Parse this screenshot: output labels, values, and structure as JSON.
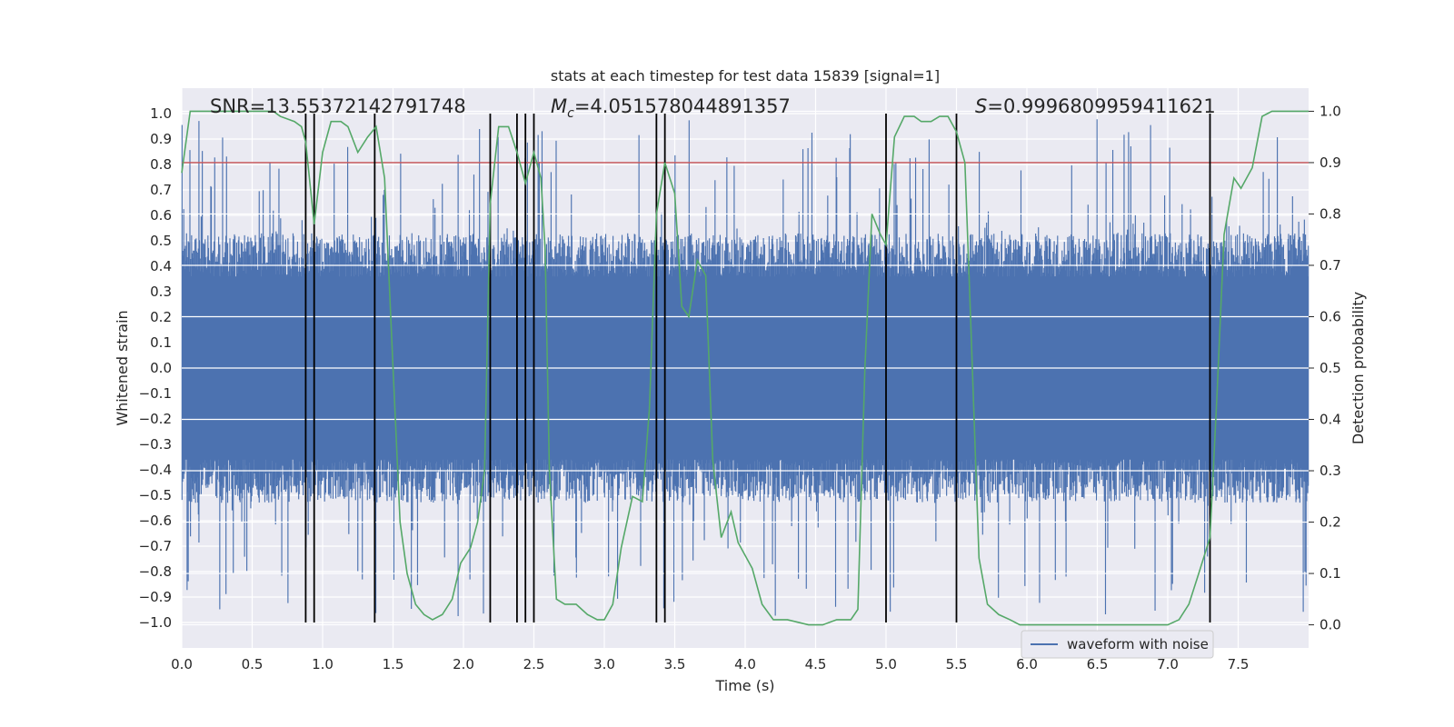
{
  "chart_data": {
    "type": "line",
    "title": "stats at each timestep for test data 15839 [signal=1]",
    "xlabel": "Time (s)",
    "ylabel": "Whitened strain",
    "y2label": "Detection probability",
    "xlim": [
      0,
      8
    ],
    "ylim": [
      -1.1,
      1.1
    ],
    "y2lim": [
      -0.045,
      1.045
    ],
    "xticks": [
      0.0,
      0.5,
      1.0,
      1.5,
      2.0,
      2.5,
      3.0,
      3.5,
      4.0,
      4.5,
      5.0,
      5.5,
      6.0,
      6.5,
      7.0,
      7.5
    ],
    "xtick_labels": [
      "0.0",
      "0.5",
      "1.0",
      "1.5",
      "2.0",
      "2.5",
      "3.0",
      "3.5",
      "4.0",
      "4.5",
      "5.0",
      "5.5",
      "6.0",
      "6.5",
      "7.0",
      "7.5"
    ],
    "yticks": [
      1.0,
      0.9,
      0.8,
      0.7,
      0.6,
      0.5,
      0.4,
      0.3,
      0.2,
      0.1,
      0.0,
      -0.1,
      -0.2,
      -0.3,
      -0.4,
      -0.5,
      -0.6,
      -0.7,
      -0.8,
      -0.9,
      -1.0
    ],
    "ytick_labels": [
      "1.0",
      "0.9",
      "0.8",
      "0.7",
      "0.6",
      "0.5",
      "0.4",
      "0.3",
      "0.2",
      "0.1",
      "0.0",
      "−0.1",
      "−0.2",
      "−0.3",
      "−0.4",
      "−0.5",
      "−0.6",
      "−0.7",
      "−0.8",
      "−0.9",
      "−1.0"
    ],
    "y2ticks": [
      1.0,
      0.9,
      0.8,
      0.7,
      0.6,
      0.5,
      0.4,
      0.3,
      0.2,
      0.1,
      0.0
    ],
    "y2tick_labels": [
      "1.0",
      "0.9",
      "0.8",
      "0.7",
      "0.6",
      "0.5",
      "0.4",
      "0.3",
      "0.2",
      "0.1",
      "0.0"
    ],
    "annotations": {
      "snr": "SNR=13.55372142791748",
      "mc_symbol": "M",
      "mc_sub": "c",
      "mc_value": "=4.051578044891357",
      "s_symbol": "S",
      "s_value": "=0.9996809959411621"
    },
    "legend": {
      "label": "waveform with noise",
      "position": "lower-right"
    },
    "threshold": {
      "value": 0.9,
      "axis": "right",
      "color": "#c44e52"
    },
    "waveform": {
      "name": "waveform with noise",
      "color": "#4c72b0",
      "duration": 8.0,
      "samples": 2000,
      "seed": 15839,
      "upper_envelope": 0.39,
      "lower_envelope": -0.39,
      "spike_max": 0.98,
      "spike_min": -0.99
    },
    "vlines_x": [
      0.88,
      0.94,
      1.37,
      2.19,
      2.38,
      2.44,
      2.5,
      3.37,
      3.43,
      5.0,
      5.5,
      7.3
    ],
    "vline_color": "#000000",
    "probability_series": {
      "name": "detection probability",
      "color": "#55a868",
      "points": [
        [
          0.0,
          0.88
        ],
        [
          0.06,
          1.0
        ],
        [
          0.12,
          1.0
        ],
        [
          0.2,
          1.0
        ],
        [
          0.3,
          1.0
        ],
        [
          0.4,
          1.0
        ],
        [
          0.5,
          1.0
        ],
        [
          0.58,
          1.0
        ],
        [
          0.65,
          1.0
        ],
        [
          0.7,
          0.99
        ],
        [
          0.8,
          0.98
        ],
        [
          0.85,
          0.97
        ],
        [
          0.88,
          0.94
        ],
        [
          0.94,
          0.78
        ],
        [
          1.0,
          0.92
        ],
        [
          1.06,
          0.98
        ],
        [
          1.13,
          0.98
        ],
        [
          1.18,
          0.97
        ],
        [
          1.25,
          0.92
        ],
        [
          1.32,
          0.95
        ],
        [
          1.38,
          0.97
        ],
        [
          1.44,
          0.87
        ],
        [
          1.5,
          0.5
        ],
        [
          1.55,
          0.2
        ],
        [
          1.6,
          0.1
        ],
        [
          1.66,
          0.04
        ],
        [
          1.72,
          0.02
        ],
        [
          1.78,
          0.01
        ],
        [
          1.85,
          0.02
        ],
        [
          1.92,
          0.05
        ],
        [
          1.98,
          0.12
        ],
        [
          2.05,
          0.15
        ],
        [
          2.1,
          0.2
        ],
        [
          2.15,
          0.3
        ],
        [
          2.19,
          0.82
        ],
        [
          2.25,
          0.97
        ],
        [
          2.32,
          0.97
        ],
        [
          2.38,
          0.92
        ],
        [
          2.44,
          0.86
        ],
        [
          2.5,
          0.92
        ],
        [
          2.55,
          0.87
        ],
        [
          2.58,
          0.73
        ],
        [
          2.61,
          0.3
        ],
        [
          2.66,
          0.05
        ],
        [
          2.72,
          0.04
        ],
        [
          2.8,
          0.04
        ],
        [
          2.88,
          0.02
        ],
        [
          2.95,
          0.01
        ],
        [
          3.0,
          0.01
        ],
        [
          3.06,
          0.04
        ],
        [
          3.12,
          0.15
        ],
        [
          3.2,
          0.25
        ],
        [
          3.27,
          0.24
        ],
        [
          3.32,
          0.42
        ],
        [
          3.37,
          0.8
        ],
        [
          3.43,
          0.9
        ],
        [
          3.5,
          0.84
        ],
        [
          3.55,
          0.62
        ],
        [
          3.6,
          0.6
        ],
        [
          3.66,
          0.71
        ],
        [
          3.72,
          0.68
        ],
        [
          3.77,
          0.32
        ],
        [
          3.83,
          0.17
        ],
        [
          3.9,
          0.22
        ],
        [
          3.95,
          0.16
        ],
        [
          4.05,
          0.11
        ],
        [
          4.12,
          0.04
        ],
        [
          4.2,
          0.01
        ],
        [
          4.3,
          0.01
        ],
        [
          4.45,
          0.0
        ],
        [
          4.55,
          0.0
        ],
        [
          4.65,
          0.01
        ],
        [
          4.75,
          0.01
        ],
        [
          4.8,
          0.03
        ],
        [
          4.85,
          0.5
        ],
        [
          4.9,
          0.8
        ],
        [
          4.96,
          0.76
        ],
        [
          5.0,
          0.74
        ],
        [
          5.06,
          0.95
        ],
        [
          5.13,
          0.99
        ],
        [
          5.2,
          0.99
        ],
        [
          5.25,
          0.98
        ],
        [
          5.32,
          0.98
        ],
        [
          5.38,
          0.99
        ],
        [
          5.44,
          0.99
        ],
        [
          5.5,
          0.96
        ],
        [
          5.56,
          0.9
        ],
        [
          5.6,
          0.6
        ],
        [
          5.66,
          0.13
        ],
        [
          5.72,
          0.04
        ],
        [
          5.8,
          0.02
        ],
        [
          5.88,
          0.01
        ],
        [
          5.95,
          0.0
        ],
        [
          6.2,
          0.0
        ],
        [
          6.5,
          0.0
        ],
        [
          6.8,
          0.0
        ],
        [
          7.0,
          0.0
        ],
        [
          7.08,
          0.01
        ],
        [
          7.15,
          0.04
        ],
        [
          7.22,
          0.1
        ],
        [
          7.3,
          0.17
        ],
        [
          7.35,
          0.45
        ],
        [
          7.4,
          0.76
        ],
        [
          7.47,
          0.87
        ],
        [
          7.52,
          0.85
        ],
        [
          7.6,
          0.89
        ],
        [
          7.67,
          0.99
        ],
        [
          7.74,
          1.0
        ],
        [
          7.82,
          1.0
        ],
        [
          8.0,
          1.0
        ]
      ]
    }
  }
}
